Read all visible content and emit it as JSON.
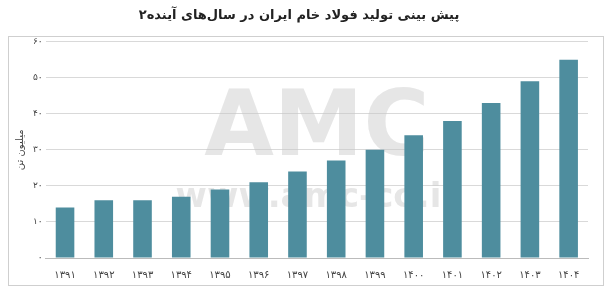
{
  "chart_data": {
    "type": "bar",
    "title": "پیش بینی تولید فولاد خام ایران در سال‌های آینده۲",
    "y_label": "میلیون تن",
    "annotations": [
      "AMC",
      "www.amc-co.ir"
    ],
    "categories": [
      "۱۳۹۱",
      "۱۳۹۲",
      "۱۳۹۳",
      "۱۳۹۴",
      "۱۳۹۵",
      "۱۳۹۶",
      "۱۳۹۷",
      "۱۳۹۸",
      "۱۳۹۹",
      "۱۴۰۰",
      "۱۴۰۱",
      "۱۴۰۲",
      "۱۴۰۳",
      "۱۴۰۴"
    ],
    "values": [
      14,
      16,
      16,
      17,
      19,
      21,
      24,
      27,
      30,
      34,
      38,
      43,
      49,
      55
    ],
    "color": "#4e8d9e",
    "ylim": [
      0,
      60
    ],
    "yticks": [
      {
        "value": 0,
        "label": "۰"
      },
      {
        "value": 10,
        "label": "۱۰"
      },
      {
        "value": 20,
        "label": "۲۰"
      },
      {
        "value": 30,
        "label": "۳۰"
      },
      {
        "value": 40,
        "label": "۴۰"
      },
      {
        "value": 50,
        "label": "۵۰"
      },
      {
        "value": 60,
        "label": "۶۰"
      }
    ],
    "grid": true
  }
}
